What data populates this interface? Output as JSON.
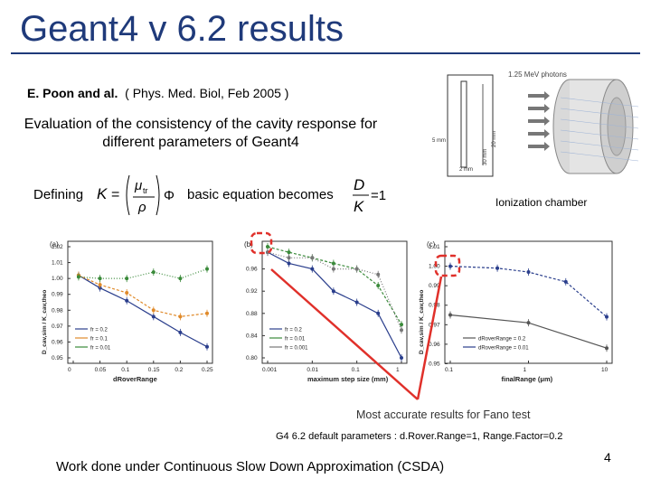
{
  "title": "Geant4 v 6.2 results",
  "author": {
    "names": "E. Poon and al.",
    "ref": "( Phys. Med. Biol, Feb 2005 )"
  },
  "evaluation_text": "Evaluation of the consistency of the cavity response for different parameters of Geant4",
  "defining_label": "Defining",
  "formula_K": {
    "lhs": "K",
    "eq": "=",
    "mu": "μ",
    "mu_sub": "tr",
    "rho": "ρ",
    "phi": "Φ"
  },
  "basic_equation_label": "basic equation becomes",
  "formula_DK": {
    "num": "D",
    "den": "K",
    "eq": "=1"
  },
  "chamber": {
    "photons_label": "1.25 MeV photons",
    "dims": [
      "5 mm",
      "2 mm",
      "20 mm",
      "30 mm"
    ],
    "caption": "Ionization chamber"
  },
  "most_accurate": "Most accurate results for Fano test",
  "g4_defaults": "G4 6.2 default parameters : d.Rover.Range=1, Range.Factor=0.2",
  "csda_note": "Work done under Continuous Slow Down Approximation (CSDA)",
  "page_number": "4",
  "colors": {
    "title": "#1f3a7a",
    "highlight": "#e0302a",
    "series_blue": "#2a3e8c",
    "series_green": "#3a8a3a",
    "series_orange": "#e08a2a"
  },
  "chart_data": [
    {
      "panel": "(a)",
      "type": "line",
      "xlabel": "dRoverRange",
      "ylabel": "D_cav,sim / K_cav,theo",
      "xlim": [
        0,
        0.25
      ],
      "ylim": [
        0.95,
        1.02
      ],
      "xticks": [
        "0",
        "0.05",
        "0.1",
        "0.15",
        "0.2",
        "0.25"
      ],
      "yticks": [
        "0.95",
        "0.96",
        "0.97",
        "0.98",
        "0.99",
        "1.00",
        "1.01",
        "1.02"
      ],
      "series": [
        {
          "name": "fr = 0.2",
          "color": "#2a3e8c",
          "x": [
            0.01,
            0.05,
            0.1,
            0.15,
            0.2,
            0.25
          ],
          "y": [
            1.002,
            0.994,
            0.986,
            0.976,
            0.966,
            0.957
          ]
        },
        {
          "name": "fr = 0.1",
          "color": "#e08a2a",
          "x": [
            0.01,
            0.05,
            0.1,
            0.15,
            0.2,
            0.25
          ],
          "y": [
            1.002,
            0.996,
            0.991,
            0.98,
            0.976,
            0.978
          ]
        },
        {
          "name": "fr = 0.01",
          "color": "#3a8a3a",
          "x": [
            0.01,
            0.05,
            0.1,
            0.15,
            0.2,
            0.25
          ],
          "y": [
            1.001,
            1.0,
            1.0,
            1.004,
            1.0,
            1.006
          ]
        }
      ]
    },
    {
      "panel": "(b)",
      "type": "line",
      "xlabel": "maximum step size (mm)",
      "ylim": [
        0.8,
        1.0
      ],
      "xticks": [
        "0.001",
        "0.01",
        "0.1",
        "1"
      ],
      "yticks": [
        "0.80",
        "0.84",
        "0.88",
        "0.92",
        "0.96"
      ],
      "series": [
        {
          "name": "fr = 0.2",
          "color": "#2a3e8c",
          "x": [
            0.001,
            0.003,
            0.01,
            0.03,
            0.1,
            0.3,
            1
          ],
          "y": [
            0.99,
            0.97,
            0.96,
            0.92,
            0.9,
            0.88,
            0.8
          ]
        },
        {
          "name": "fr = 0.01",
          "color": "#3a8a3a",
          "x": [
            0.001,
            0.003,
            0.01,
            0.03,
            0.1,
            0.3,
            1
          ],
          "y": [
            1.0,
            0.99,
            0.98,
            0.97,
            0.96,
            0.93,
            0.86
          ]
        },
        {
          "name": "fr = 0.001",
          "color": "#777777",
          "x": [
            0.001,
            0.003,
            0.01,
            0.03,
            0.1,
            0.3,
            1
          ],
          "y": [
            0.99,
            0.98,
            0.98,
            0.96,
            0.96,
            0.95,
            0.85
          ]
        }
      ]
    },
    {
      "panel": "(c)",
      "type": "line",
      "xlabel": "finalRange (μm)",
      "ylabel": "D_cav,sim / K_cav,theo",
      "xticks": [
        "0.1",
        "1",
        "10"
      ],
      "yticks": [
        "0.95",
        "0.96",
        "0.97",
        "0.98",
        "0.99",
        "1.00",
        "1.01"
      ],
      "series": [
        {
          "name": "dRoverRange = 0.2",
          "color": "#555555",
          "x": [
            0.1,
            1,
            10
          ],
          "y": [
            0.975,
            0.971,
            0.958
          ]
        },
        {
          "name": "dRoverRange = 0.01",
          "color": "#2a3e8c",
          "x": [
            0.1,
            0.4,
            1,
            3,
            10
          ],
          "y": [
            1.0,
            0.999,
            0.997,
            0.992,
            0.974
          ]
        }
      ]
    }
  ]
}
